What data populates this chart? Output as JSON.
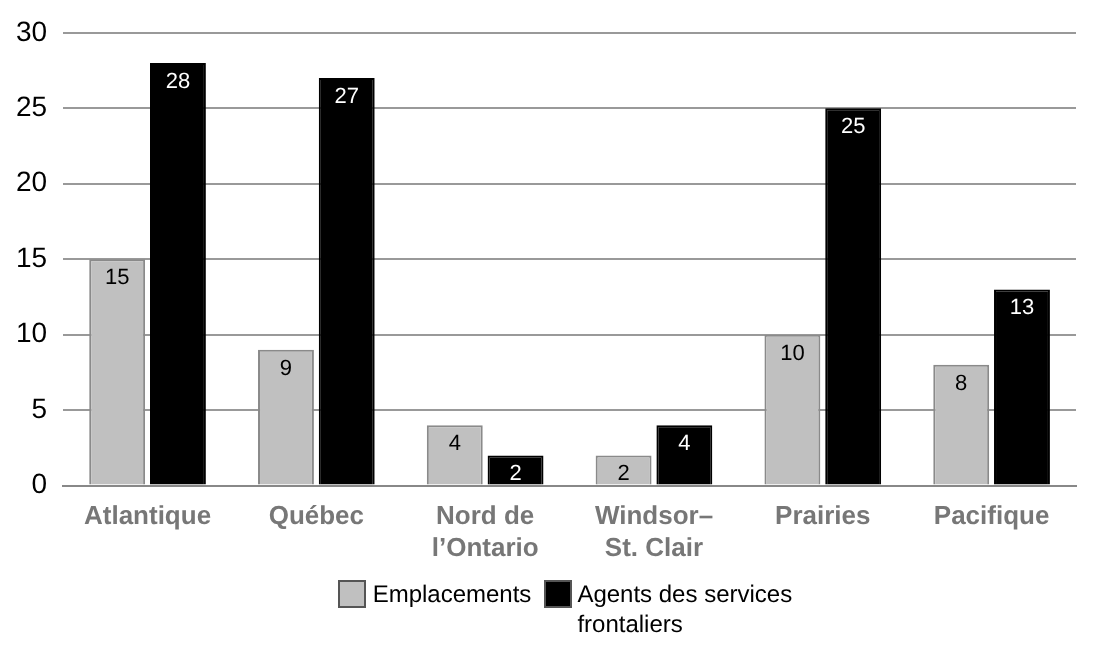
{
  "chart_data": {
    "type": "bar",
    "categories": [
      "Atlantique",
      "Québec",
      "Nord de l’Ontario",
      "Windsor–St. Clair",
      "Prairies",
      "Pacifique"
    ],
    "series": [
      {
        "name": "Emplacements",
        "color": "#c0c0c0",
        "values": [
          15,
          9,
          4,
          2,
          10,
          8
        ]
      },
      {
        "name": "Agents des services frontaliers",
        "color": "#000000",
        "values": [
          28,
          27,
          2,
          4,
          25,
          13
        ]
      }
    ],
    "ylim": [
      0,
      30
    ],
    "yticks": [
      0,
      5,
      10,
      15,
      20,
      25,
      30
    ],
    "grid": "y",
    "legend": "bottom",
    "data_labels": true
  }
}
